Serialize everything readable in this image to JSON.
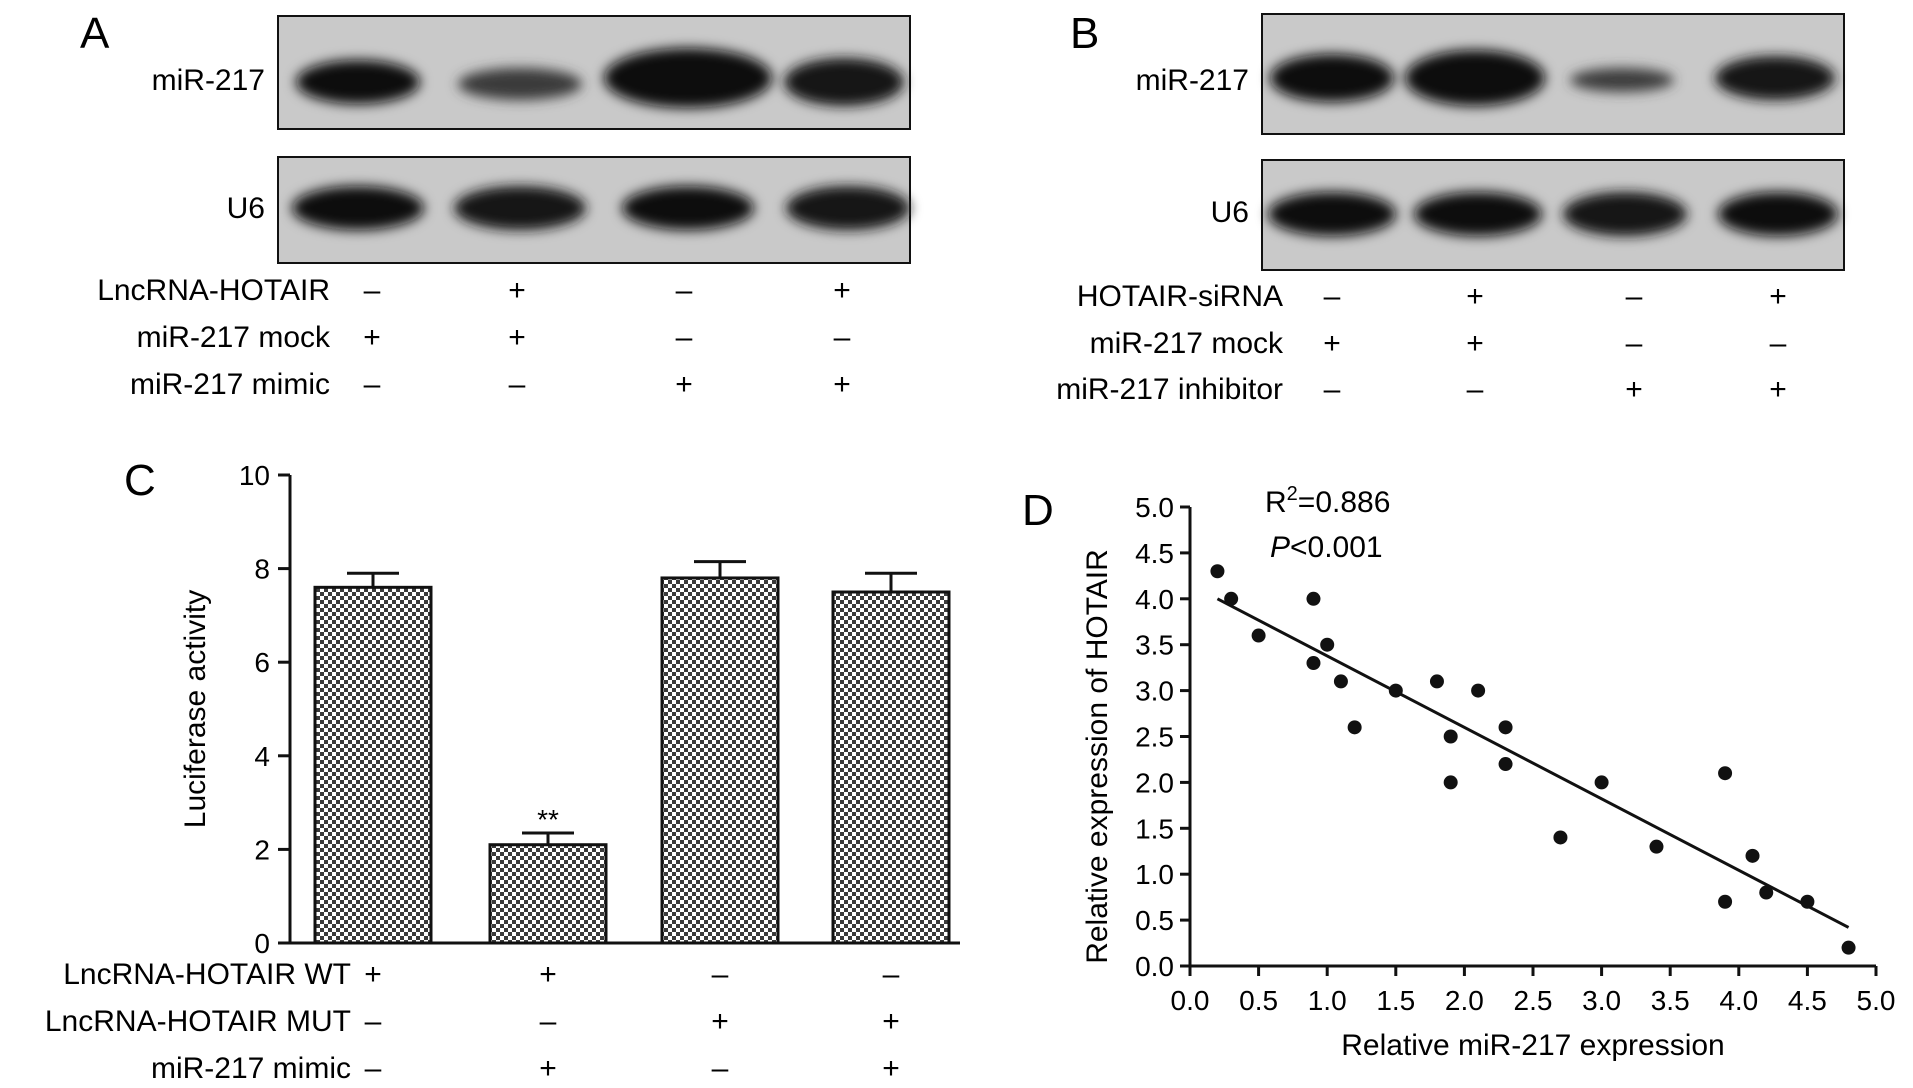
{
  "panel_a": {
    "letter": "A",
    "blot_labels": [
      "miR-217",
      "U6"
    ],
    "rows": [
      {
        "label": "LncRNA-HOTAIR",
        "signs": [
          "–",
          "+",
          "–",
          "+"
        ]
      },
      {
        "label": "miR-217 mock",
        "signs": [
          "+",
          "+",
          "–",
          "–"
        ]
      },
      {
        "label": "miR-217 mimic",
        "signs": [
          "–",
          "–",
          "+",
          "+"
        ]
      }
    ]
  },
  "panel_b": {
    "letter": "B",
    "blot_labels": [
      "miR-217",
      "U6"
    ],
    "rows": [
      {
        "label": "HOTAIR-siRNA",
        "signs": [
          "–",
          "+",
          "–",
          "+"
        ]
      },
      {
        "label": "miR-217 mock",
        "signs": [
          "+",
          "+",
          "–",
          "–"
        ]
      },
      {
        "label": "miR-217 inhibitor",
        "signs": [
          "–",
          "–",
          "+",
          "+"
        ]
      }
    ]
  },
  "panel_c": {
    "letter": "C",
    "rows": [
      {
        "label": "LncRNA-HOTAIR WT",
        "signs": [
          "+",
          "+",
          "–",
          "–"
        ]
      },
      {
        "label": "LncRNA-HOTAIR MUT",
        "signs": [
          "–",
          "–",
          "+",
          "+"
        ]
      },
      {
        "label": "miR-217 mimic",
        "signs": [
          "–",
          "+",
          "–",
          "+"
        ]
      }
    ]
  },
  "panel_d": {
    "letter": "D",
    "r2_prefix": "R",
    "r2_sup": "2",
    "r2_value": "=0.886",
    "p_italic": "P",
    "p_value": "<0.001"
  },
  "chart_data": [
    {
      "type": "bar",
      "panel": "C",
      "ylabel": "Luciferase activity",
      "ylim": [
        0,
        10
      ],
      "yticks": [
        0,
        2,
        4,
        6,
        8,
        10
      ],
      "values": [
        7.6,
        2.1,
        7.8,
        7.5
      ],
      "errors": [
        0.3,
        0.25,
        0.35,
        0.4
      ],
      "annotations": [
        "",
        "**",
        "",
        ""
      ],
      "bar_pattern": "checkered",
      "grid": false
    },
    {
      "type": "scatter",
      "panel": "D",
      "xlabel": "Relative miR-217 expression",
      "ylabel": "Relative expression of HOTAIR",
      "xlim": [
        0,
        5
      ],
      "ylim": [
        0,
        5
      ],
      "xticks": [
        "0.0",
        "0.5",
        "1.0",
        "1.5",
        "2.0",
        "2.5",
        "3.0",
        "3.5",
        "4.0",
        "4.5",
        "5.0"
      ],
      "yticks": [
        "0.0",
        "0.5",
        "1.0",
        "1.5",
        "2.0",
        "2.5",
        "3.0",
        "3.5",
        "4.0",
        "4.5",
        "5.0"
      ],
      "x": [
        0.2,
        0.3,
        0.5,
        0.9,
        0.9,
        1.0,
        1.1,
        1.2,
        1.5,
        1.8,
        1.9,
        1.9,
        2.1,
        2.3,
        2.3,
        2.7,
        3.0,
        3.4,
        3.9,
        3.9,
        4.1,
        4.2,
        4.5,
        4.8
      ],
      "y": [
        4.3,
        4.0,
        3.6,
        4.0,
        3.3,
        3.5,
        3.1,
        2.6,
        3.0,
        3.1,
        2.5,
        2.0,
        3.0,
        2.6,
        2.2,
        1.4,
        2.0,
        1.3,
        2.1,
        0.7,
        1.2,
        0.8,
        0.7,
        0.2
      ],
      "fit_line": {
        "x": [
          0.2,
          4.8
        ],
        "y": [
          4.0,
          0.42
        ]
      },
      "grid": false
    }
  ]
}
